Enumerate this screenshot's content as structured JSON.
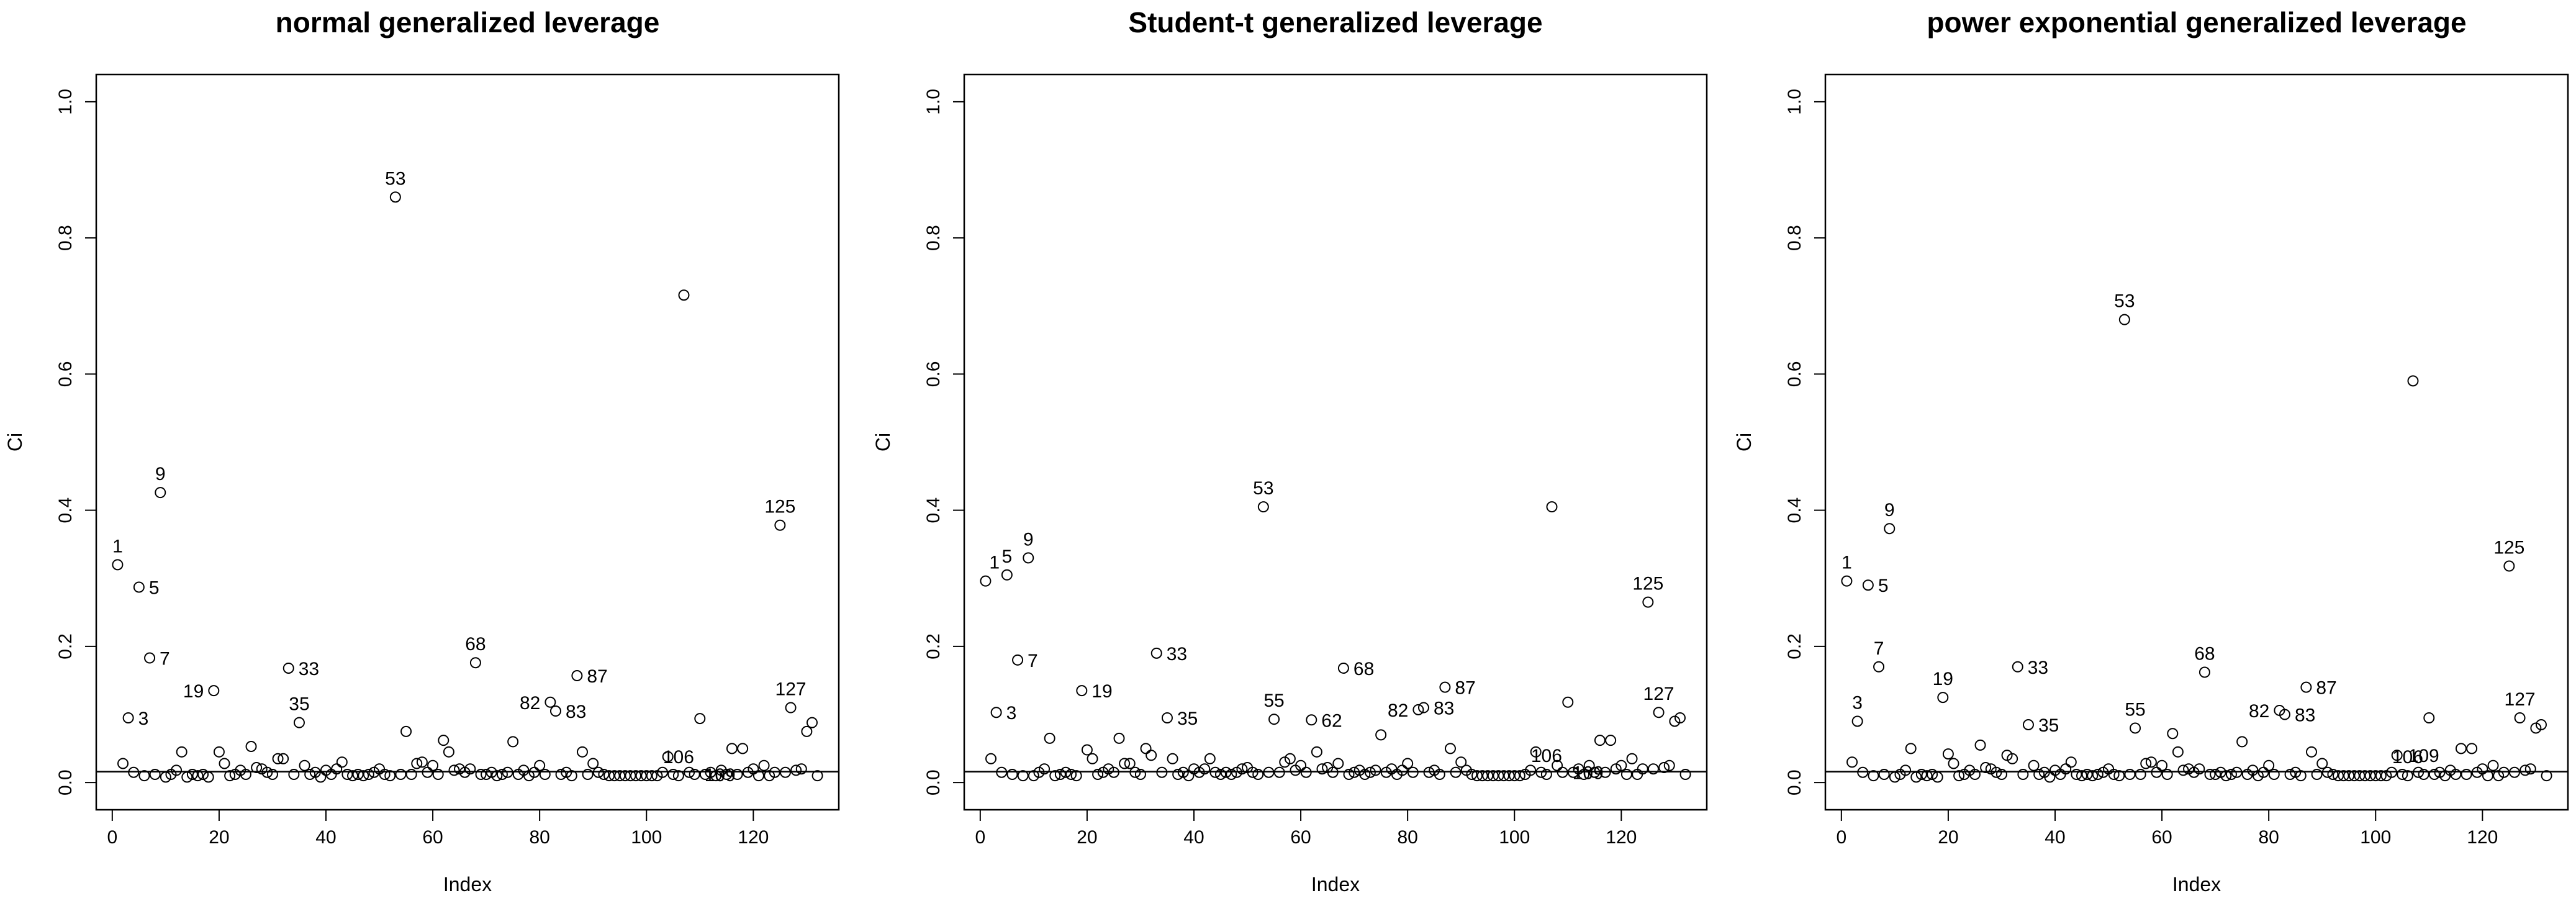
{
  "chart_data": [
    {
      "type": "scatter",
      "title": "normal generalized leverage",
      "xlabel": "Index",
      "ylabel": "Ci",
      "xlim": [
        -3,
        136
      ],
      "ylim": [
        -0.04,
        1.04
      ],
      "xticks": [
        0,
        20,
        40,
        60,
        80,
        100,
        120
      ],
      "yticks": [
        0.0,
        0.2,
        0.4,
        0.6,
        0.8,
        1.0
      ],
      "hline": 0.016,
      "x": [
        1,
        2,
        3,
        4,
        5,
        6,
        7,
        8,
        9,
        10,
        11,
        12,
        13,
        14,
        15,
        16,
        17,
        18,
        19,
        20,
        21,
        22,
        23,
        24,
        25,
        26,
        27,
        28,
        29,
        30,
        31,
        32,
        33,
        34,
        35,
        36,
        37,
        38,
        39,
        40,
        41,
        42,
        43,
        44,
        45,
        46,
        47,
        48,
        49,
        50,
        51,
        52,
        53,
        54,
        55,
        56,
        57,
        58,
        59,
        60,
        61,
        62,
        63,
        64,
        65,
        66,
        67,
        68,
        69,
        70,
        71,
        72,
        73,
        74,
        75,
        76,
        77,
        78,
        79,
        80,
        81,
        82,
        83,
        84,
        85,
        86,
        87,
        88,
        89,
        90,
        91,
        92,
        93,
        94,
        95,
        96,
        97,
        98,
        99,
        100,
        101,
        102,
        103,
        104,
        105,
        106,
        107,
        108,
        109,
        110,
        111,
        112,
        113,
        114,
        115,
        116,
        117,
        118,
        119,
        120,
        121,
        122,
        123,
        124,
        125,
        126,
        127,
        128,
        129,
        130,
        131,
        132
      ],
      "y": [
        0.32,
        0.028,
        0.095,
        0.015,
        0.287,
        0.01,
        0.183,
        0.012,
        0.426,
        0.008,
        0.012,
        0.018,
        0.045,
        0.008,
        0.012,
        0.01,
        0.012,
        0.008,
        0.135,
        0.045,
        0.028,
        0.01,
        0.012,
        0.018,
        0.012,
        0.053,
        0.022,
        0.02,
        0.015,
        0.012,
        0.035,
        0.035,
        0.168,
        0.012,
        0.088,
        0.025,
        0.012,
        0.015,
        0.008,
        0.018,
        0.012,
        0.02,
        0.03,
        0.012,
        0.01,
        0.012,
        0.01,
        0.012,
        0.015,
        0.02,
        0.012,
        0.01,
        0.86,
        0.012,
        0.075,
        0.012,
        0.028,
        0.03,
        0.015,
        0.025,
        0.012,
        0.062,
        0.045,
        0.018,
        0.02,
        0.015,
        0.02,
        0.176,
        0.012,
        0.012,
        0.015,
        0.01,
        0.012,
        0.015,
        0.06,
        0.012,
        0.018,
        0.01,
        0.015,
        0.025,
        0.012,
        0.118,
        0.105,
        0.012,
        0.015,
        0.01,
        0.157,
        0.045,
        0.012,
        0.028,
        0.015,
        0.012,
        0.01,
        0.01,
        0.01,
        0.01,
        0.01,
        0.01,
        0.01,
        0.01,
        0.01,
        0.01,
        0.015,
        0.038,
        0.012,
        0.01,
        0.716,
        0.015,
        0.012,
        0.094,
        0.012,
        0.015,
        0.01,
        0.018,
        0.012,
        0.05,
        0.012,
        0.05,
        0.015,
        0.02,
        0.01,
        0.025,
        0.01,
        0.015,
        0.378,
        0.015,
        0.11,
        0.018,
        0.02,
        0.075,
        0.088,
        0.01
      ],
      "labels": [
        {
          "i": 1,
          "text": "1",
          "pos": "above"
        },
        {
          "i": 3,
          "text": "3",
          "pos": "right"
        },
        {
          "i": 5,
          "text": "5",
          "pos": "right"
        },
        {
          "i": 7,
          "text": "7",
          "pos": "right"
        },
        {
          "i": 9,
          "text": "9",
          "pos": "above"
        },
        {
          "i": 19,
          "text": "19",
          "pos": "left"
        },
        {
          "i": 33,
          "text": "33",
          "pos": "right"
        },
        {
          "i": 35,
          "text": "35",
          "pos": "above"
        },
        {
          "i": 53,
          "text": "53",
          "pos": "above"
        },
        {
          "i": 68,
          "text": "68",
          "pos": "above"
        },
        {
          "i": 82,
          "text": "82",
          "pos": "left"
        },
        {
          "i": 83,
          "text": "83",
          "pos": "right"
        },
        {
          "i": 87,
          "text": "87",
          "pos": "right"
        },
        {
          "i": 106,
          "text": "106",
          "pos": "above"
        },
        {
          "i": 109,
          "text": "109",
          "pos": "right"
        },
        {
          "i": 125,
          "text": "125",
          "pos": "above"
        },
        {
          "i": 127,
          "text": "127",
          "pos": "above"
        }
      ]
    },
    {
      "type": "scatter",
      "title": "Student-t generalized leverage",
      "xlabel": "Index",
      "ylabel": "Ci",
      "xlim": [
        -3,
        136
      ],
      "ylim": [
        -0.04,
        1.04
      ],
      "xticks": [
        0,
        20,
        40,
        60,
        80,
        100,
        120
      ],
      "yticks": [
        0.0,
        0.2,
        0.4,
        0.6,
        0.8,
        1.0
      ],
      "hline": 0.016,
      "x": [
        1,
        2,
        3,
        4,
        5,
        6,
        7,
        8,
        9,
        10,
        11,
        12,
        13,
        14,
        15,
        16,
        17,
        18,
        19,
        20,
        21,
        22,
        23,
        24,
        25,
        26,
        27,
        28,
        29,
        30,
        31,
        32,
        33,
        34,
        35,
        36,
        37,
        38,
        39,
        40,
        41,
        42,
        43,
        44,
        45,
        46,
        47,
        48,
        49,
        50,
        51,
        52,
        53,
        54,
        55,
        56,
        57,
        58,
        59,
        60,
        61,
        62,
        63,
        64,
        65,
        66,
        67,
        68,
        69,
        70,
        71,
        72,
        73,
        74,
        75,
        76,
        77,
        78,
        79,
        80,
        81,
        82,
        83,
        84,
        85,
        86,
        87,
        88,
        89,
        90,
        91,
        92,
        93,
        94,
        95,
        96,
        97,
        98,
        99,
        100,
        101,
        102,
        103,
        104,
        105,
        106,
        107,
        108,
        109,
        110,
        111,
        112,
        113,
        114,
        115,
        116,
        117,
        118,
        119,
        120,
        121,
        122,
        123,
        124,
        125,
        126,
        127,
        128,
        129,
        130,
        131,
        132
      ],
      "y": [
        0.296,
        0.035,
        0.103,
        0.015,
        0.305,
        0.012,
        0.18,
        0.01,
        0.33,
        0.01,
        0.015,
        0.02,
        0.065,
        0.01,
        0.012,
        0.015,
        0.012,
        0.01,
        0.135,
        0.048,
        0.035,
        0.012,
        0.015,
        0.02,
        0.015,
        0.065,
        0.028,
        0.028,
        0.015,
        0.012,
        0.05,
        0.04,
        0.19,
        0.015,
        0.095,
        0.035,
        0.012,
        0.015,
        0.01,
        0.02,
        0.015,
        0.02,
        0.035,
        0.015,
        0.012,
        0.015,
        0.012,
        0.015,
        0.02,
        0.022,
        0.015,
        0.012,
        0.405,
        0.015,
        0.093,
        0.015,
        0.03,
        0.035,
        0.018,
        0.025,
        0.015,
        0.092,
        0.045,
        0.02,
        0.022,
        0.015,
        0.028,
        0.168,
        0.012,
        0.015,
        0.018,
        0.012,
        0.015,
        0.018,
        0.07,
        0.015,
        0.02,
        0.012,
        0.018,
        0.028,
        0.015,
        0.107,
        0.11,
        0.015,
        0.018,
        0.012,
        0.14,
        0.05,
        0.015,
        0.03,
        0.018,
        0.012,
        0.01,
        0.01,
        0.01,
        0.01,
        0.01,
        0.01,
        0.01,
        0.01,
        0.01,
        0.012,
        0.018,
        0.045,
        0.015,
        0.012,
        0.405,
        0.025,
        0.015,
        0.118,
        0.015,
        0.02,
        0.012,
        0.025,
        0.015,
        0.062,
        0.015,
        0.062,
        0.02,
        0.025,
        0.012,
        0.035,
        0.012,
        0.02,
        0.265,
        0.02,
        0.103,
        0.022,
        0.025,
        0.09,
        0.095,
        0.012
      ],
      "labels": [
        {
          "i": 1,
          "text": "1",
          "pos": "above-right"
        },
        {
          "i": 3,
          "text": "3",
          "pos": "right"
        },
        {
          "i": 5,
          "text": "5",
          "pos": "above"
        },
        {
          "i": 7,
          "text": "7",
          "pos": "right"
        },
        {
          "i": 9,
          "text": "9",
          "pos": "above"
        },
        {
          "i": 19,
          "text": "19",
          "pos": "right"
        },
        {
          "i": 33,
          "text": "33",
          "pos": "right"
        },
        {
          "i": 35,
          "text": "35",
          "pos": "right"
        },
        {
          "i": 53,
          "text": "53",
          "pos": "above"
        },
        {
          "i": 55,
          "text": "55",
          "pos": "above"
        },
        {
          "i": 62,
          "text": "62",
          "pos": "right"
        },
        {
          "i": 68,
          "text": "68",
          "pos": "right"
        },
        {
          "i": 82,
          "text": "82",
          "pos": "left"
        },
        {
          "i": 83,
          "text": "83",
          "pos": "right"
        },
        {
          "i": 87,
          "text": "87",
          "pos": "right"
        },
        {
          "i": 106,
          "text": "106",
          "pos": "above"
        },
        {
          "i": 109,
          "text": "109",
          "pos": "right"
        },
        {
          "i": 125,
          "text": "125",
          "pos": "above"
        },
        {
          "i": 127,
          "text": "127",
          "pos": "above"
        }
      ]
    },
    {
      "type": "scatter",
      "title": "power exponential generalized leverage",
      "xlabel": "Index",
      "ylabel": "Ci",
      "xlim": [
        -3,
        136
      ],
      "ylim": [
        -0.04,
        1.04
      ],
      "xticks": [
        0,
        20,
        40,
        60,
        80,
        100,
        120
      ],
      "yticks": [
        0.0,
        0.2,
        0.4,
        0.6,
        0.8,
        1.0
      ],
      "hline": 0.016,
      "x": [
        1,
        2,
        3,
        4,
        5,
        6,
        7,
        8,
        9,
        10,
        11,
        12,
        13,
        14,
        15,
        16,
        17,
        18,
        19,
        20,
        21,
        22,
        23,
        24,
        25,
        26,
        27,
        28,
        29,
        30,
        31,
        32,
        33,
        34,
        35,
        36,
        37,
        38,
        39,
        40,
        41,
        42,
        43,
        44,
        45,
        46,
        47,
        48,
        49,
        50,
        51,
        52,
        53,
        54,
        55,
        56,
        57,
        58,
        59,
        60,
        61,
        62,
        63,
        64,
        65,
        66,
        67,
        68,
        69,
        70,
        71,
        72,
        73,
        74,
        75,
        76,
        77,
        78,
        79,
        80,
        81,
        82,
        83,
        84,
        85,
        86,
        87,
        88,
        89,
        90,
        91,
        92,
        93,
        94,
        95,
        96,
        97,
        98,
        99,
        100,
        101,
        102,
        103,
        104,
        105,
        106,
        107,
        108,
        109,
        110,
        111,
        112,
        113,
        114,
        115,
        116,
        117,
        118,
        119,
        120,
        121,
        122,
        123,
        124,
        125,
        126,
        127,
        128,
        129,
        130,
        131,
        132
      ],
      "y": [
        0.296,
        0.03,
        0.09,
        0.015,
        0.29,
        0.01,
        0.17,
        0.012,
        0.373,
        0.008,
        0.012,
        0.018,
        0.05,
        0.008,
        0.012,
        0.01,
        0.012,
        0.008,
        0.125,
        0.042,
        0.028,
        0.01,
        0.012,
        0.018,
        0.012,
        0.055,
        0.022,
        0.02,
        0.015,
        0.012,
        0.04,
        0.035,
        0.17,
        0.012,
        0.085,
        0.025,
        0.012,
        0.015,
        0.008,
        0.018,
        0.012,
        0.02,
        0.03,
        0.012,
        0.01,
        0.012,
        0.01,
        0.012,
        0.015,
        0.02,
        0.012,
        0.01,
        0.68,
        0.012,
        0.08,
        0.012,
        0.028,
        0.03,
        0.015,
        0.025,
        0.012,
        0.072,
        0.045,
        0.018,
        0.02,
        0.015,
        0.02,
        0.162,
        0.012,
        0.012,
        0.015,
        0.01,
        0.012,
        0.015,
        0.06,
        0.012,
        0.018,
        0.01,
        0.015,
        0.025,
        0.012,
        0.106,
        0.1,
        0.012,
        0.015,
        0.01,
        0.14,
        0.045,
        0.012,
        0.028,
        0.015,
        0.012,
        0.01,
        0.01,
        0.01,
        0.01,
        0.01,
        0.01,
        0.01,
        0.01,
        0.01,
        0.01,
        0.015,
        0.04,
        0.012,
        0.01,
        0.59,
        0.015,
        0.012,
        0.095,
        0.012,
        0.015,
        0.01,
        0.018,
        0.012,
        0.05,
        0.012,
        0.05,
        0.015,
        0.02,
        0.01,
        0.025,
        0.01,
        0.015,
        0.318,
        0.015,
        0.095,
        0.018,
        0.02,
        0.08,
        0.085,
        0.01
      ],
      "labels": [
        {
          "i": 1,
          "text": "1",
          "pos": "above"
        },
        {
          "i": 3,
          "text": "3",
          "pos": "above"
        },
        {
          "i": 5,
          "text": "5",
          "pos": "right"
        },
        {
          "i": 7,
          "text": "7",
          "pos": "above"
        },
        {
          "i": 9,
          "text": "9",
          "pos": "above"
        },
        {
          "i": 19,
          "text": "19",
          "pos": "above"
        },
        {
          "i": 33,
          "text": "33",
          "pos": "right"
        },
        {
          "i": 35,
          "text": "35",
          "pos": "right"
        },
        {
          "i": 53,
          "text": "53",
          "pos": "above"
        },
        {
          "i": 55,
          "text": "55",
          "pos": "above"
        },
        {
          "i": 68,
          "text": "68",
          "pos": "above"
        },
        {
          "i": 82,
          "text": "82",
          "pos": "left"
        },
        {
          "i": 83,
          "text": "83",
          "pos": "right"
        },
        {
          "i": 87,
          "text": "87",
          "pos": "right"
        },
        {
          "i": 106,
          "text": "106",
          "pos": "above"
        },
        {
          "i": 109,
          "text": "109",
          "pos": "above"
        },
        {
          "i": 125,
          "text": "125",
          "pos": "above"
        },
        {
          "i": 127,
          "text": "127",
          "pos": "above"
        }
      ]
    }
  ]
}
